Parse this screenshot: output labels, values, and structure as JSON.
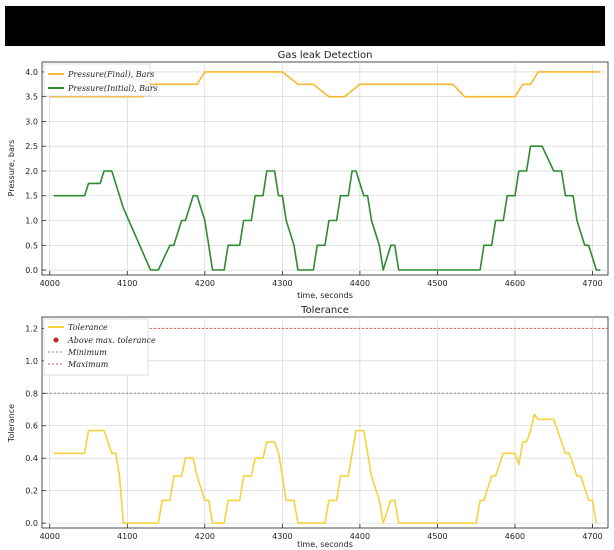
{
  "chart_data": [
    {
      "type": "line",
      "title": "Gas leak Detection",
      "xlabel": "time, seconds",
      "ylabel": "Pressure, bars",
      "xlim": [
        3990,
        4720
      ],
      "ylim": [
        -0.1,
        4.2
      ],
      "xticks": [
        4000,
        4100,
        4200,
        4300,
        4400,
        4500,
        4600,
        4700
      ],
      "yticks": [
        0.0,
        0.5,
        1.0,
        1.5,
        2.0,
        2.5,
        3.0,
        3.5,
        4.0
      ],
      "grid": true,
      "legend_position": "top-left",
      "series": [
        {
          "name": "Pressure(Final), Bars",
          "color": "#f5b82e",
          "x": [
            4000,
            4120,
            4130,
            4190,
            4200,
            4300,
            4320,
            4340,
            4360,
            4380,
            4400,
            4430,
            4470,
            4490,
            4520,
            4535,
            4540,
            4600,
            4610,
            4620,
            4630,
            4710
          ],
          "y": [
            3.5,
            3.5,
            3.75,
            3.75,
            4.0,
            4.0,
            3.75,
            3.75,
            3.5,
            3.5,
            3.75,
            3.75,
            3.75,
            3.75,
            3.75,
            3.5,
            3.5,
            3.5,
            3.75,
            3.75,
            4.0,
            4.0
          ]
        },
        {
          "name": "Pressure(Initial), Bars",
          "color": "#2e8b2e",
          "x": [
            4005,
            4045,
            4050,
            4065,
            4070,
            4080,
            4085,
            4090,
            4095,
            4130,
            4140,
            4155,
            4160,
            4170,
            4175,
            4185,
            4190,
            4200,
            4205,
            4210,
            4225,
            4230,
            4245,
            4250,
            4260,
            4265,
            4275,
            4280,
            4290,
            4295,
            4300,
            4305,
            4315,
            4320,
            4340,
            4345,
            4355,
            4360,
            4370,
            4375,
            4385,
            4390,
            4395,
            4405,
            4410,
            4415,
            4425,
            4430,
            4440,
            4445,
            4450,
            4455,
            4460,
            4465,
            4470,
            4555,
            4560,
            4570,
            4575,
            4585,
            4590,
            4600,
            4605,
            4615,
            4620,
            4630,
            4635,
            4650,
            4660,
            4665,
            4675,
            4680,
            4690,
            4695,
            4705,
            4710
          ],
          "y": [
            1.5,
            1.5,
            1.75,
            1.75,
            2.0,
            2.0,
            1.75,
            1.5,
            1.25,
            0.0,
            0.0,
            0.5,
            0.5,
            1.0,
            1.0,
            1.5,
            1.5,
            1.0,
            0.5,
            0.0,
            0.0,
            0.5,
            0.5,
            1.0,
            1.0,
            1.5,
            1.5,
            2.0,
            2.0,
            1.5,
            1.5,
            1.0,
            0.5,
            0.0,
            0.0,
            0.5,
            0.5,
            1.0,
            1.0,
            1.5,
            1.5,
            2.0,
            2.0,
            1.5,
            1.5,
            1.0,
            0.5,
            0.0,
            0.5,
            0.5,
            0.0,
            0.0,
            0.0,
            0.0,
            0.0,
            0.0,
            0.5,
            0.5,
            1.0,
            1.0,
            1.5,
            1.5,
            2.0,
            2.0,
            2.5,
            2.5,
            2.5,
            2.0,
            2.0,
            1.5,
            1.5,
            1.0,
            0.5,
            0.5,
            0.0,
            0.0
          ]
        }
      ]
    },
    {
      "type": "line",
      "title": "Tolerance",
      "xlabel": "time, seconds",
      "ylabel": "Tolerance",
      "xlim": [
        3990,
        4720
      ],
      "ylim": [
        -0.03,
        1.27
      ],
      "xticks": [
        4000,
        4100,
        4200,
        4300,
        4400,
        4500,
        4600,
        4700
      ],
      "yticks": [
        0.0,
        0.2,
        0.4,
        0.6,
        0.8,
        1.0,
        1.2
      ],
      "grid": true,
      "legend_position": "top-left",
      "series": [
        {
          "name": "Tolerance",
          "color": "#f7d23c",
          "x": [
            4005,
            4045,
            4050,
            4065,
            4070,
            4080,
            4085,
            4090,
            4095,
            4140,
            4145,
            4155,
            4160,
            4170,
            4175,
            4185,
            4190,
            4200,
            4205,
            4210,
            4225,
            4230,
            4245,
            4250,
            4260,
            4265,
            4275,
            4280,
            4290,
            4295,
            4300,
            4305,
            4315,
            4320,
            4355,
            4360,
            4370,
            4375,
            4385,
            4390,
            4395,
            4405,
            4410,
            4415,
            4425,
            4430,
            4440,
            4445,
            4450,
            4455,
            4460,
            4550,
            4555,
            4560,
            4570,
            4575,
            4585,
            4590,
            4600,
            4605,
            4610,
            4615,
            4620,
            4625,
            4630,
            4635,
            4650,
            4655,
            4665,
            4670,
            4680,
            4685,
            4695,
            4700,
            4705
          ],
          "y": [
            0.43,
            0.43,
            0.57,
            0.57,
            0.57,
            0.43,
            0.43,
            0.29,
            0.0,
            0.0,
            0.14,
            0.14,
            0.29,
            0.29,
            0.4,
            0.4,
            0.29,
            0.14,
            0.14,
            0.0,
            0.0,
            0.14,
            0.14,
            0.29,
            0.29,
            0.4,
            0.4,
            0.5,
            0.5,
            0.43,
            0.29,
            0.14,
            0.14,
            0.0,
            0.0,
            0.14,
            0.14,
            0.29,
            0.29,
            0.43,
            0.57,
            0.57,
            0.43,
            0.29,
            0.14,
            0.0,
            0.14,
            0.14,
            0.0,
            0.0,
            0.0,
            0.0,
            0.14,
            0.14,
            0.29,
            0.29,
            0.43,
            0.43,
            0.43,
            0.36,
            0.5,
            0.5,
            0.57,
            0.67,
            0.64,
            0.64,
            0.64,
            0.57,
            0.43,
            0.43,
            0.29,
            0.29,
            0.14,
            0.14,
            0.0
          ]
        }
      ],
      "reference_lines": [
        {
          "name": "Minimum",
          "y": 0.8,
          "color": "#8a8a8a"
        },
        {
          "name": "Maximum",
          "y": 1.2,
          "color": "#e05555"
        }
      ],
      "markers": [
        {
          "name": "Above max. tolerance",
          "color": "#cc2222"
        }
      ]
    }
  ]
}
